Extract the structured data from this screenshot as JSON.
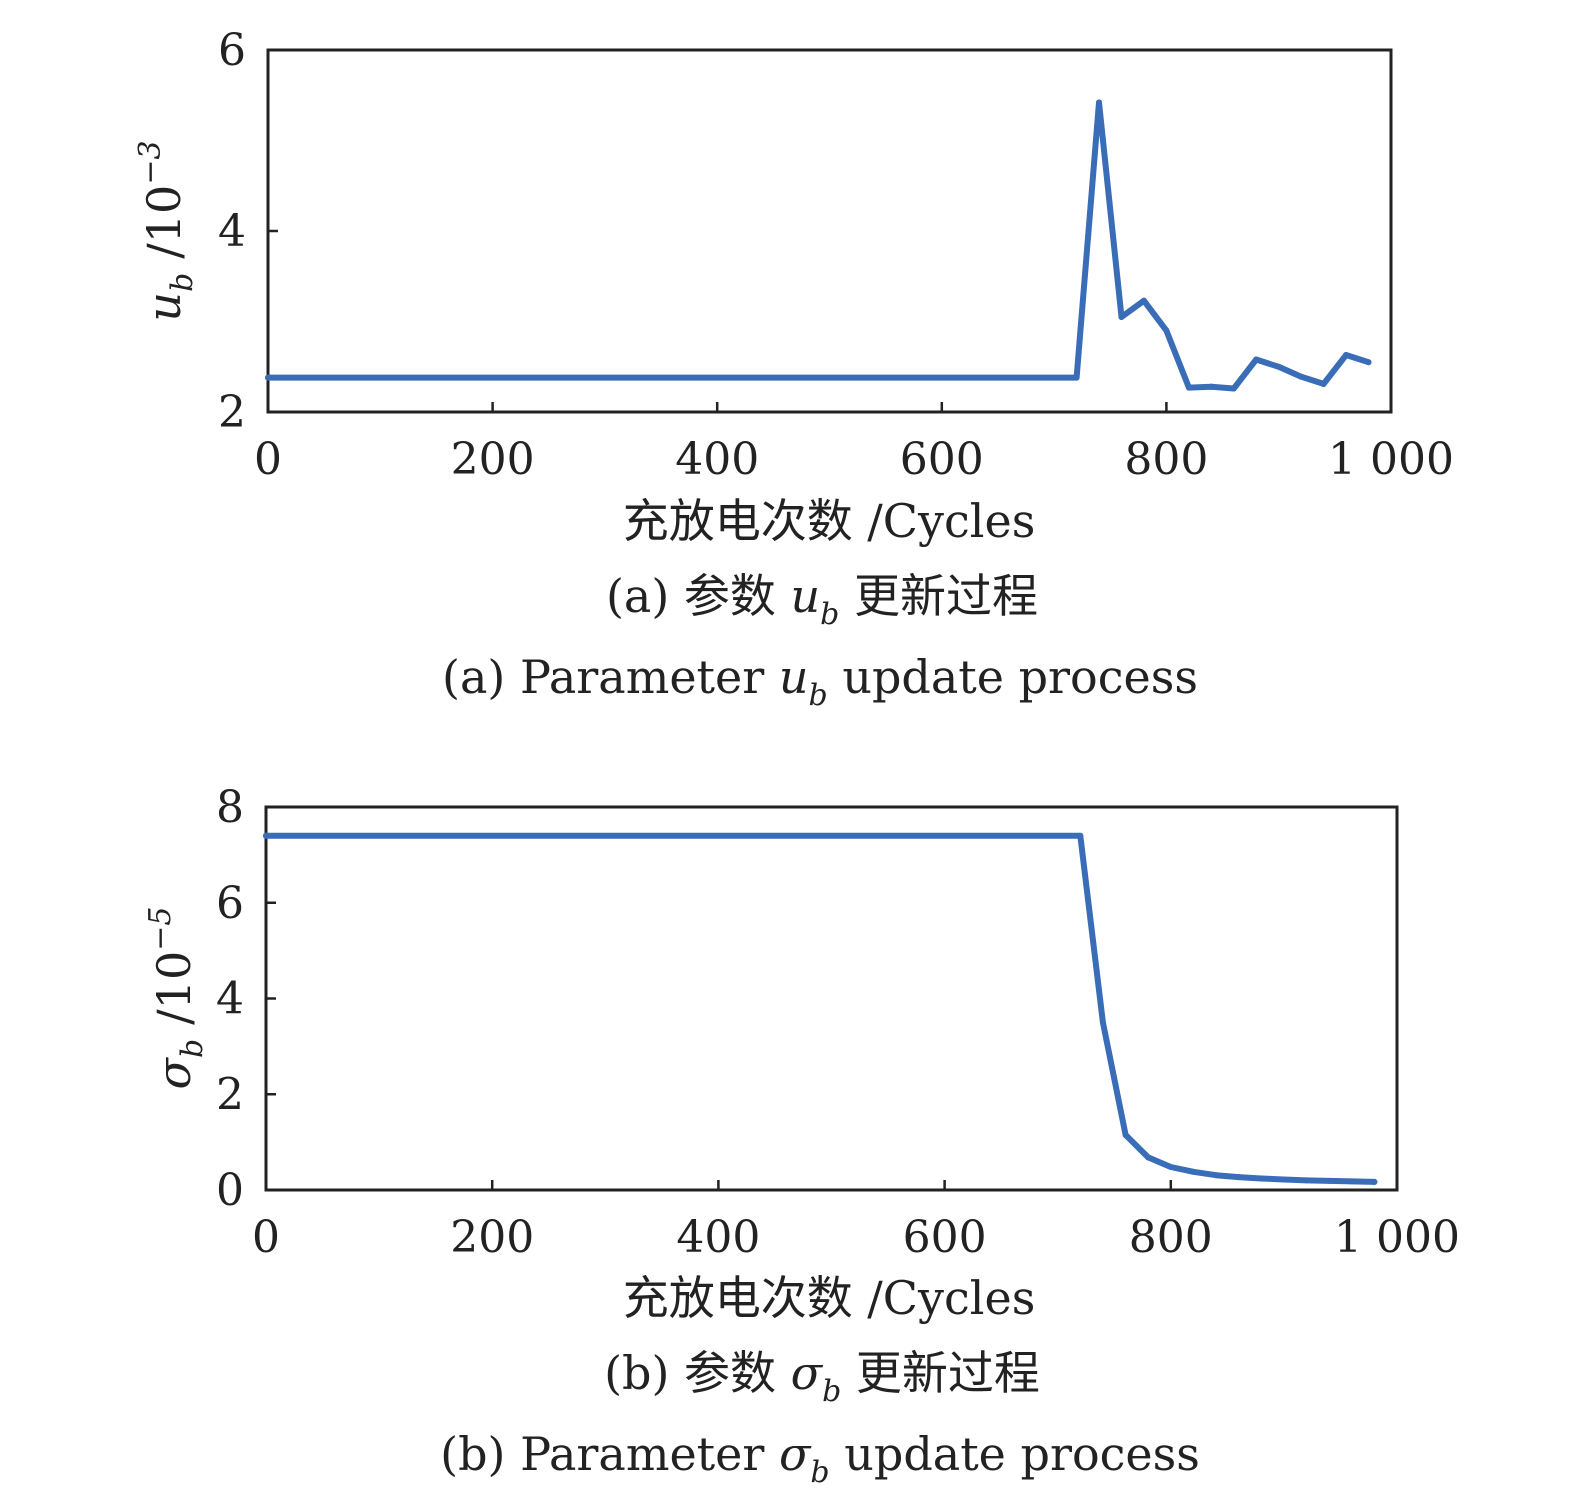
{
  "line_color": "#3a6db8",
  "chart_data": [
    {
      "type": "line",
      "xlabel": "充放电次数 /Cycles",
      "ylabel": {
        "symbol": "u",
        "subscript": "b",
        "unit": "/10",
        "exponent": "−3"
      },
      "xlim": [
        0,
        1000
      ],
      "ylim": [
        2,
        6
      ],
      "x_ticks": [
        "0",
        "200",
        "400",
        "600",
        "800",
        "1 000"
      ],
      "x_tick_values": [
        0,
        200,
        400,
        600,
        800,
        1000
      ],
      "y_ticks": [
        "2",
        "4",
        "6"
      ],
      "y_tick_values": [
        2,
        4,
        6
      ],
      "grid": false,
      "series": [
        {
          "x": [
            0,
            720,
            740,
            760,
            780,
            800,
            820,
            840,
            860,
            880,
            900,
            920,
            940,
            960,
            980
          ],
          "y": [
            2.38,
            2.38,
            5.42,
            3.05,
            3.23,
            2.9,
            2.27,
            2.28,
            2.26,
            2.58,
            2.5,
            2.39,
            2.31,
            2.63,
            2.55
          ]
        }
      ],
      "caption_cn": {
        "prefix": "(a) 参数 ",
        "symbol": "u",
        "subscript": "b",
        "suffix": " 更新过程"
      },
      "caption_en": {
        "prefix": "(a) Parameter ",
        "symbol": "u",
        "subscript": "b",
        "suffix": " update process"
      }
    },
    {
      "type": "line",
      "xlabel": "充放电次数 /Cycles",
      "ylabel": {
        "symbol": "σ",
        "subscript": "b",
        "unit": "/10",
        "exponent": "−5"
      },
      "xlim": [
        0,
        1000
      ],
      "ylim": [
        0,
        8
      ],
      "x_ticks": [
        "0",
        "200",
        "400",
        "600",
        "800",
        "1 000"
      ],
      "x_tick_values": [
        0,
        200,
        400,
        600,
        800,
        1000
      ],
      "y_ticks": [
        "0",
        "2",
        "4",
        "6",
        "8"
      ],
      "y_tick_values": [
        0,
        2,
        4,
        6,
        8
      ],
      "grid": false,
      "series": [
        {
          "x": [
            0,
            720,
            740,
            760,
            780,
            800,
            820,
            840,
            860,
            880,
            900,
            920,
            940,
            960,
            980
          ],
          "y": [
            7.4,
            7.4,
            3.5,
            1.15,
            0.68,
            0.48,
            0.38,
            0.31,
            0.27,
            0.24,
            0.22,
            0.2,
            0.19,
            0.18,
            0.17
          ]
        }
      ],
      "caption_cn": {
        "prefix": "(b) 参数 ",
        "symbol": "σ",
        "subscript": "b",
        "suffix": " 更新过程"
      },
      "caption_en": {
        "prefix": "(b) Parameter ",
        "symbol": "σ",
        "subscript": "b",
        "suffix": " update process"
      }
    }
  ]
}
